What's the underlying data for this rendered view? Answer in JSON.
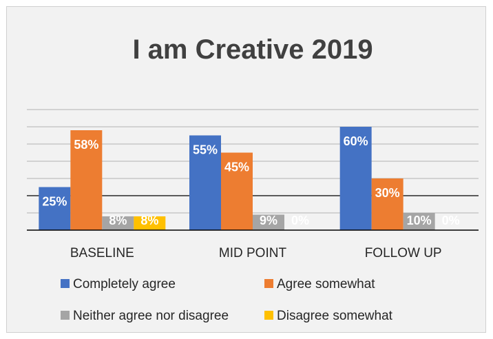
{
  "chart_data": {
    "type": "bar",
    "title": "I am Creative 2019",
    "xlabel": "",
    "ylabel": "",
    "categories": [
      "BASELINE",
      "MID POINT",
      "FOLLOW UP"
    ],
    "series": [
      {
        "name": "Completely agree",
        "values": [
          25,
          55,
          60
        ],
        "labels": [
          "25%",
          "55%",
          "60%"
        ],
        "color": "#4472c4"
      },
      {
        "name": "Agree somewhat",
        "values": [
          58,
          45,
          30
        ],
        "labels": [
          "58%",
          "45%",
          "30%"
        ],
        "color": "#ed7d31"
      },
      {
        "name": "Neither agree nor disagree",
        "values": [
          8,
          9,
          10
        ],
        "labels": [
          "8%",
          "9%",
          "10%"
        ],
        "color": "#a5a5a5"
      },
      {
        "name": "Disagree somewhat",
        "values": [
          8,
          0,
          0
        ],
        "labels": [
          "8%",
          "0%",
          "0%"
        ],
        "color": "#ffc000"
      }
    ],
    "ylim": [
      0,
      70
    ],
    "y_axis_visible": false,
    "grid": true,
    "legend_position": "bottom"
  }
}
